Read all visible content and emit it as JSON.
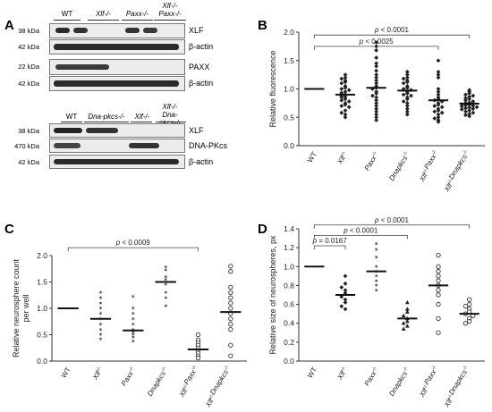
{
  "panels": {
    "A": {
      "letter": "A",
      "top_headers": [
        {
          "text": "WT",
          "italic": false
        },
        {
          "text": "Xlf-/-",
          "italic": true
        },
        {
          "text": "Paxx-/-",
          "italic": true
        },
        {
          "text": "Xlf-/- Paxx-/-",
          "italic": true
        }
      ],
      "top_rows": [
        {
          "kda": "38 kDa",
          "label": "XLF"
        },
        {
          "kda": "42 kDa",
          "label": "β-actin"
        },
        {
          "kda": "22 kDa",
          "label": "PAXX"
        },
        {
          "kda": "42 kDa",
          "label": "β-actin"
        }
      ],
      "bottom_headers": [
        {
          "text": "WT",
          "italic": false
        },
        {
          "text": "Dna-pkcs-/-",
          "italic": true
        },
        {
          "text": "Xlf-/-",
          "italic": true
        },
        {
          "text": "Xlf-/- Dna-pkcs-/-",
          "italic": true
        }
      ],
      "bottom_rows": [
        {
          "kda": "38 kDa",
          "label": "XLF"
        },
        {
          "kda": "470 kDa",
          "label": "DNA-PKcs"
        },
        {
          "kda": "42 kDa",
          "label": "β-actin"
        }
      ]
    },
    "B": {
      "letter": "B",
      "chart_data": {
        "type": "scatter",
        "ylabel": "Relative fluorescence",
        "ylim": [
          0.0,
          2.0
        ],
        "yticks": [
          "0.0",
          "0.5",
          "1.0",
          "1.5",
          "2.0"
        ],
        "categories": [
          "WT",
          "Xlf-/-",
          "Paxx-/-",
          "Dna-pkcs-/-",
          "Xlf-/-Paxx-/-",
          "Xlf-/-Dna-pkcs-/-"
        ],
        "means": [
          1.0,
          0.9,
          1.02,
          0.97,
          0.8,
          0.74
        ],
        "markers": [
          "none",
          "filled-diamond",
          "filled-diamond",
          "filled-diamond",
          "filled-diamond",
          "filled-diamond"
        ],
        "points": [
          [],
          [
            1.25,
            1.2,
            1.18,
            1.15,
            1.12,
            1.1,
            1.05,
            1.02,
            1.0,
            0.98,
            0.95,
            0.93,
            0.9,
            0.88,
            0.86,
            0.85,
            0.82,
            0.8,
            0.78,
            0.75,
            0.72,
            0.7,
            0.68,
            0.62,
            0.58,
            0.55,
            0.5
          ],
          [
            1.82,
            1.75,
            1.68,
            1.55,
            1.45,
            1.4,
            1.32,
            1.25,
            1.2,
            1.15,
            1.1,
            1.05,
            1.02,
            1.0,
            0.95,
            0.92,
            0.88,
            0.85,
            0.8,
            0.75,
            0.7,
            0.65,
            0.6,
            0.55,
            0.5,
            0.45
          ],
          [
            1.3,
            1.25,
            1.2,
            1.18,
            1.15,
            1.12,
            1.1,
            1.05,
            1.02,
            1.0,
            0.98,
            0.95,
            0.92,
            0.9,
            0.88,
            0.85,
            0.82,
            0.78,
            0.75,
            0.7,
            0.65,
            0.6,
            0.55
          ],
          [
            1.5,
            1.3,
            1.25,
            1.2,
            1.0,
            0.95,
            0.9,
            0.85,
            0.82,
            0.8,
            0.78,
            0.75,
            0.72,
            0.7,
            0.68,
            0.65,
            0.62,
            0.6,
            0.58,
            0.55,
            0.5,
            0.48,
            0.45,
            0.42
          ],
          [
            0.98,
            0.95,
            0.92,
            0.9,
            0.88,
            0.86,
            0.84,
            0.82,
            0.8,
            0.78,
            0.76,
            0.75,
            0.74,
            0.73,
            0.72,
            0.71,
            0.7,
            0.69,
            0.68,
            0.67,
            0.66,
            0.65,
            0.64,
            0.62,
            0.6,
            0.58,
            0.56,
            0.54,
            0.52
          ]
        ],
        "annotations": [
          {
            "text": "p < 0.0001",
            "from": 0,
            "to": 5,
            "y": 1.95
          },
          {
            "text": "p < 0.0025",
            "from": 0,
            "to": 4,
            "y": 1.75
          }
        ]
      }
    },
    "C": {
      "letter": "C",
      "chart_data": {
        "type": "scatter",
        "ylabel": "Relative neurosphere count per well",
        "ylim": [
          0.0,
          2.0
        ],
        "yticks": [
          "0.0",
          "0.5",
          "1.0",
          "1.5",
          "2.0"
        ],
        "categories": [
          "WT",
          "Xlf-/-",
          "Paxx-/-",
          "Dna-pkcs-/-",
          "Xlf-/-Paxx-/-",
          "Xlf-/-Dna-pkcs-/-"
        ],
        "means": [
          1.0,
          0.8,
          0.58,
          1.5,
          0.22,
          0.93
        ],
        "markers": [
          "none",
          "star",
          "star",
          "star",
          "circle",
          "circle"
        ],
        "points": [
          [],
          [
            1.3,
            1.2,
            1.1,
            1.0,
            0.9,
            0.8,
            0.7,
            0.6,
            0.5,
            0.42
          ],
          [
            1.22,
            1.0,
            0.9,
            0.8,
            0.7,
            0.6,
            0.55,
            0.5,
            0.45,
            0.38
          ],
          [
            1.78,
            1.72,
            1.6,
            1.55,
            1.45,
            1.3,
            1.2,
            1.05
          ],
          [
            0.5,
            0.4,
            0.35,
            0.3,
            0.25,
            0.2,
            0.15,
            0.1,
            0.06
          ],
          [
            1.8,
            1.7,
            1.4,
            1.3,
            1.2,
            1.1,
            1.0,
            0.9,
            0.8,
            0.7,
            0.6,
            0.3,
            0.1
          ]
        ],
        "annotations": [
          {
            "text": "p < 0.0009",
            "from": 0,
            "to": 4,
            "y": 2.15
          }
        ]
      }
    },
    "D": {
      "letter": "D",
      "chart_data": {
        "type": "scatter",
        "ylabel": "Relative size of neurospheres, px",
        "ylim": [
          0.0,
          1.4
        ],
        "yticks": [
          "0.0",
          "0.2",
          "0.4",
          "0.6",
          "0.8",
          "1.0",
          "1.2",
          "1.4"
        ],
        "categories": [
          "WT",
          "Xlf-/-",
          "Paxx-/-",
          "Dna-pkcs-/-",
          "Xlf-/-Paxx-/-",
          "Xlf-/-Dna-pkcs-/-"
        ],
        "means": [
          1.0,
          0.7,
          0.95,
          0.45,
          0.8,
          0.5
        ],
        "markers": [
          "none",
          "filled-diamond",
          "star",
          "filled-triangle",
          "circle",
          "circle"
        ],
        "points": [
          [],
          [
            0.9,
            0.82,
            0.78,
            0.75,
            0.72,
            0.68,
            0.65,
            0.62,
            0.58,
            0.55
          ],
          [
            1.24,
            1.18,
            1.1,
            1.0,
            0.95,
            0.9,
            0.85,
            0.8,
            0.75
          ],
          [
            0.62,
            0.55,
            0.52,
            0.48,
            0.45,
            0.42,
            0.4,
            0.37,
            0.34
          ],
          [
            1.12,
            1.0,
            0.95,
            0.9,
            0.85,
            0.8,
            0.75,
            0.7,
            0.6,
            0.45,
            0.3
          ],
          [
            0.65,
            0.6,
            0.58,
            0.55,
            0.52,
            0.5,
            0.48,
            0.45,
            0.42,
            0.4
          ]
        ],
        "annotations": [
          {
            "text": "p = 0.0167",
            "from": 0,
            "to": 1,
            "y": 1.22
          },
          {
            "text": "p < 0.0001",
            "from": 0,
            "to": 3,
            "y": 1.33
          },
          {
            "text": "p < 0.0001",
            "from": 0,
            "to": 5,
            "y": 1.44
          }
        ]
      }
    }
  }
}
